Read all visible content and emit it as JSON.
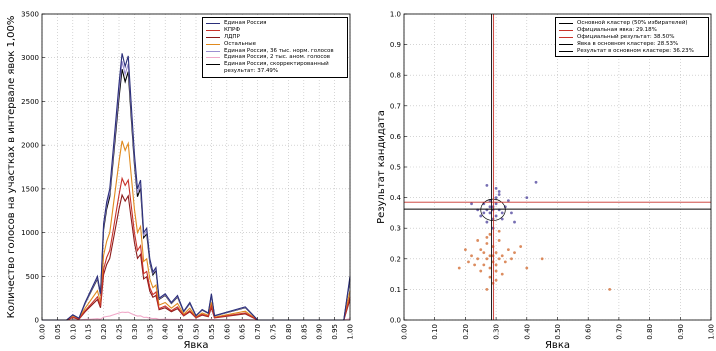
{
  "chart_data": [
    {
      "type": "line",
      "xlabel": "Явка",
      "ylabel": "Количество голосов на участках в интервале явок 1,00%",
      "xlim": [
        0,
        1
      ],
      "ylim": [
        0,
        3500
      ],
      "grid": true,
      "legend": "upper right",
      "xticks": [
        {
          "value": 0,
          "label": "0.00"
        },
        {
          "value": 0.05,
          "label": "0.05"
        },
        {
          "value": 0.1,
          "label": "0.10"
        },
        {
          "value": 0.15,
          "label": "0.15"
        },
        {
          "value": 0.2,
          "label": "0.20"
        },
        {
          "value": 0.25,
          "label": "0.25"
        },
        {
          "value": 0.3,
          "label": "0.30"
        },
        {
          "value": 0.35,
          "label": "0.35"
        },
        {
          "value": 0.4,
          "label": "0.40"
        },
        {
          "value": 0.45,
          "label": "0.45"
        },
        {
          "value": 0.5,
          "label": "0.50"
        },
        {
          "value": 0.55,
          "label": "0.55"
        },
        {
          "value": 0.6,
          "label": "0.60"
        },
        {
          "value": 0.65,
          "label": "0.65"
        },
        {
          "value": 0.7,
          "label": "0.70"
        },
        {
          "value": 0.75,
          "label": "0.75"
        },
        {
          "value": 0.8,
          "label": "0.80"
        },
        {
          "value": 0.85,
          "label": "0.85"
        },
        {
          "value": 0.9,
          "label": "0.90"
        },
        {
          "value": 0.95,
          "label": "0.95"
        },
        {
          "value": 1,
          "label": "1.00"
        }
      ],
      "yticks": [
        0,
        500,
        1000,
        1500,
        2000,
        2500,
        3000,
        3500
      ],
      "x": [
        0,
        0.05,
        0.08,
        0.1,
        0.12,
        0.14,
        0.16,
        0.18,
        0.19,
        0.2,
        0.21,
        0.22,
        0.23,
        0.24,
        0.25,
        0.26,
        0.27,
        0.28,
        0.29,
        0.3,
        0.31,
        0.32,
        0.33,
        0.34,
        0.35,
        0.36,
        0.37,
        0.38,
        0.4,
        0.42,
        0.44,
        0.46,
        0.48,
        0.5,
        0.52,
        0.54,
        0.55,
        0.56,
        0.66,
        0.7,
        0.8,
        0.9,
        0.98,
        1
      ],
      "series": [
        {
          "name": "Единая Россия",
          "color": "#2b2f7a",
          "values": [
            0,
            0,
            0,
            60,
            20,
            200,
            350,
            500,
            300,
            1100,
            1350,
            1500,
            1900,
            2300,
            2700,
            3050,
            2900,
            3020,
            2450,
            1900,
            1500,
            1600,
            1000,
            1050,
            700,
            550,
            600,
            250,
            300,
            200,
            280,
            100,
            200,
            50,
            120,
            80,
            300,
            50,
            150,
            0,
            0,
            0,
            0,
            500
          ]
        },
        {
          "name": "КПРФ",
          "color": "#c8322a",
          "values": [
            0,
            0,
            0,
            32,
            11,
            106,
            185,
            265,
            160,
            580,
            715,
            795,
            1000,
            1220,
            1430,
            1620,
            1540,
            1600,
            1300,
            1000,
            795,
            850,
            530,
            555,
            370,
            290,
            320,
            130,
            160,
            106,
            150,
            53,
            106,
            27,
            64,
            42,
            160,
            27,
            80,
            0,
            0,
            0,
            0,
            265
          ]
        },
        {
          "name": "ЛДПР",
          "color": "#8b1a1a",
          "values": [
            0,
            0,
            0,
            28,
            9,
            94,
            165,
            235,
            140,
            520,
            635,
            705,
            890,
            1080,
            1270,
            1430,
            1360,
            1420,
            1150,
            890,
            705,
            750,
            470,
            495,
            330,
            260,
            280,
            118,
            140,
            94,
            130,
            47,
            94,
            24,
            56,
            38,
            140,
            24,
            70,
            0,
            0,
            0,
            0,
            235
          ]
        },
        {
          "name": "Остальные",
          "color": "#e08a1e",
          "values": [
            0,
            0,
            0,
            40,
            13,
            135,
            235,
            335,
            200,
            740,
            900,
            1000,
            1270,
            1540,
            1810,
            2050,
            1940,
            2020,
            1640,
            1270,
            1000,
            1070,
            670,
            700,
            470,
            370,
            400,
            170,
            200,
            135,
            190,
            67,
            135,
            33,
            80,
            54,
            200,
            33,
            100,
            0,
            0,
            0,
            0,
            335
          ]
        },
        {
          "name": "Единая Россия, 36 тыс. норм. голосов",
          "color": "#9b8fd0",
          "values": [
            0,
            0,
            0,
            58,
            19,
            194,
            340,
            485,
            290,
            1070,
            1310,
            1455,
            1840,
            2230,
            2620,
            2960,
            2810,
            2930,
            2380,
            1840,
            1455,
            1550,
            970,
            1020,
            680,
            535,
            580,
            243,
            290,
            194,
            270,
            97,
            194,
            48,
            116,
            78,
            290,
            48,
            145,
            0,
            0,
            0,
            0,
            485
          ]
        },
        {
          "name": "Единая Россия, 2 тыс. аном. голосов",
          "color": "#f0a8c8",
          "values": [
            0,
            0,
            0,
            2,
            1,
            6,
            10,
            15,
            9,
            33,
            40,
            45,
            57,
            69,
            80,
            90,
            87,
            90,
            73,
            57,
            45,
            48,
            30,
            31,
            21,
            16,
            18,
            7,
            9,
            6,
            8,
            3,
            6,
            2,
            4,
            2,
            9,
            2,
            5,
            0,
            0,
            0,
            0,
            15
          ]
        },
        {
          "name": "Единая Россия, скорректированный результат: 37.49%",
          "color": "#000000",
          "values": [
            0,
            0,
            0,
            56,
            19,
            188,
            330,
            470,
            282,
            1035,
            1270,
            1410,
            1785,
            2160,
            2540,
            2870,
            2725,
            2840,
            2300,
            1785,
            1410,
            1505,
            940,
            985,
            660,
            515,
            565,
            235,
            282,
            188,
            263,
            94,
            188,
            47,
            113,
            75,
            282,
            47,
            141,
            0,
            0,
            0,
            0,
            470
          ]
        }
      ]
    },
    {
      "type": "scatter",
      "xlabel": "Явка",
      "ylabel": "Результат кандидата",
      "xlim": [
        0,
        1
      ],
      "ylim": [
        0,
        1
      ],
      "grid": true,
      "legend": "upper right",
      "xticks": [
        {
          "value": 0,
          "label": "0.00"
        },
        {
          "value": 0.1,
          "label": "0.10"
        },
        {
          "value": 0.2,
          "label": "0.20"
        },
        {
          "value": 0.3,
          "label": "0.30"
        },
        {
          "value": 0.4,
          "label": "0.40"
        },
        {
          "value": 0.5,
          "label": "0.50"
        },
        {
          "value": 0.6,
          "label": "0.60"
        },
        {
          "value": 0.7,
          "label": "0.70"
        },
        {
          "value": 0.8,
          "label": "0.80"
        },
        {
          "value": 0.9,
          "label": "0.90"
        },
        {
          "value": 1,
          "label": "1.00"
        }
      ],
      "yticks": [
        {
          "value": 0,
          "label": "0.0"
        },
        {
          "value": 0.1,
          "label": "0.1"
        },
        {
          "value": 0.2,
          "label": "0.2"
        },
        {
          "value": 0.3,
          "label": "0.3"
        },
        {
          "value": 0.4,
          "label": "0.4"
        },
        {
          "value": 0.5,
          "label": "0.5"
        },
        {
          "value": 0.6,
          "label": "0.6"
        },
        {
          "value": 0.7,
          "label": "0.7"
        },
        {
          "value": 0.8,
          "label": "0.8"
        },
        {
          "value": 0.9,
          "label": "0.9"
        },
        {
          "value": 1,
          "label": "1.0"
        }
      ],
      "series": [
        {
          "color": "#4a3f9a",
          "x": [
            0.27,
            0.28,
            0.29,
            0.3,
            0.31,
            0.26,
            0.32,
            0.29,
            0.28,
            0.3,
            0.25,
            0.33,
            0.27,
            0.31,
            0.29,
            0.3,
            0.24,
            0.35,
            0.28,
            0.32,
            0.26,
            0.3,
            0.29,
            0.22,
            0.4,
            0.36,
            0.31,
            0.27,
            0.34,
            0.43
          ],
          "values": [
            0.36,
            0.35,
            0.37,
            0.34,
            0.36,
            0.38,
            0.35,
            0.33,
            0.39,
            0.4,
            0.34,
            0.37,
            0.32,
            0.41,
            0.36,
            0.38,
            0.36,
            0.35,
            0.37,
            0.33,
            0.35,
            0.43,
            0.3,
            0.38,
            0.4,
            0.32,
            0.42,
            0.44,
            0.39,
            0.45
          ]
        },
        {
          "color": "#d0652a",
          "x": [
            0.27,
            0.28,
            0.29,
            0.3,
            0.26,
            0.31,
            0.25,
            0.32,
            0.28,
            0.29,
            0.27,
            0.3,
            0.24,
            0.33,
            0.26,
            0.31,
            0.28,
            0.29,
            0.23,
            0.34,
            0.27,
            0.3,
            0.22,
            0.35,
            0.29,
            0.25,
            0.32,
            0.28,
            0.36,
            0.21,
            0.38,
            0.2,
            0.4,
            0.27,
            0.31,
            0.3,
            0.24,
            0.45,
            0.18,
            0.67
          ],
          "values": [
            0.2,
            0.21,
            0.19,
            0.22,
            0.18,
            0.2,
            0.23,
            0.21,
            0.17,
            0.24,
            0.25,
            0.16,
            0.2,
            0.19,
            0.22,
            0.26,
            0.14,
            0.21,
            0.18,
            0.23,
            0.27,
            0.18,
            0.21,
            0.2,
            0.12,
            0.16,
            0.15,
            0.28,
            0.22,
            0.19,
            0.24,
            0.23,
            0.17,
            0.1,
            0.29,
            0.13,
            0.26,
            0.2,
            0.17,
            0.1
          ]
        }
      ],
      "reference_lines": [
        {
          "name": "Основной кластер (50% избирателей)",
          "shape": "ellipse",
          "color": "#000000",
          "center": [
            0.29,
            0.36
          ],
          "radius": [
            0.04,
            0.035
          ]
        },
        {
          "name": "Официальная явка: 29.18%",
          "shape": "vertical",
          "color": "#c8322a",
          "value": 0.2918
        },
        {
          "name": "Официальный результат: 38.50%",
          "shape": "horizontal",
          "color": "#c8322a",
          "value": 0.385
        },
        {
          "name": "Явка в основном кластере: 28.53%",
          "shape": "vertical",
          "color": "#000000",
          "value": 0.2853
        },
        {
          "name": "Результат в основном кластере: 36.23%",
          "shape": "horizontal",
          "color": "#000000",
          "value": 0.3623
        }
      ]
    }
  ]
}
